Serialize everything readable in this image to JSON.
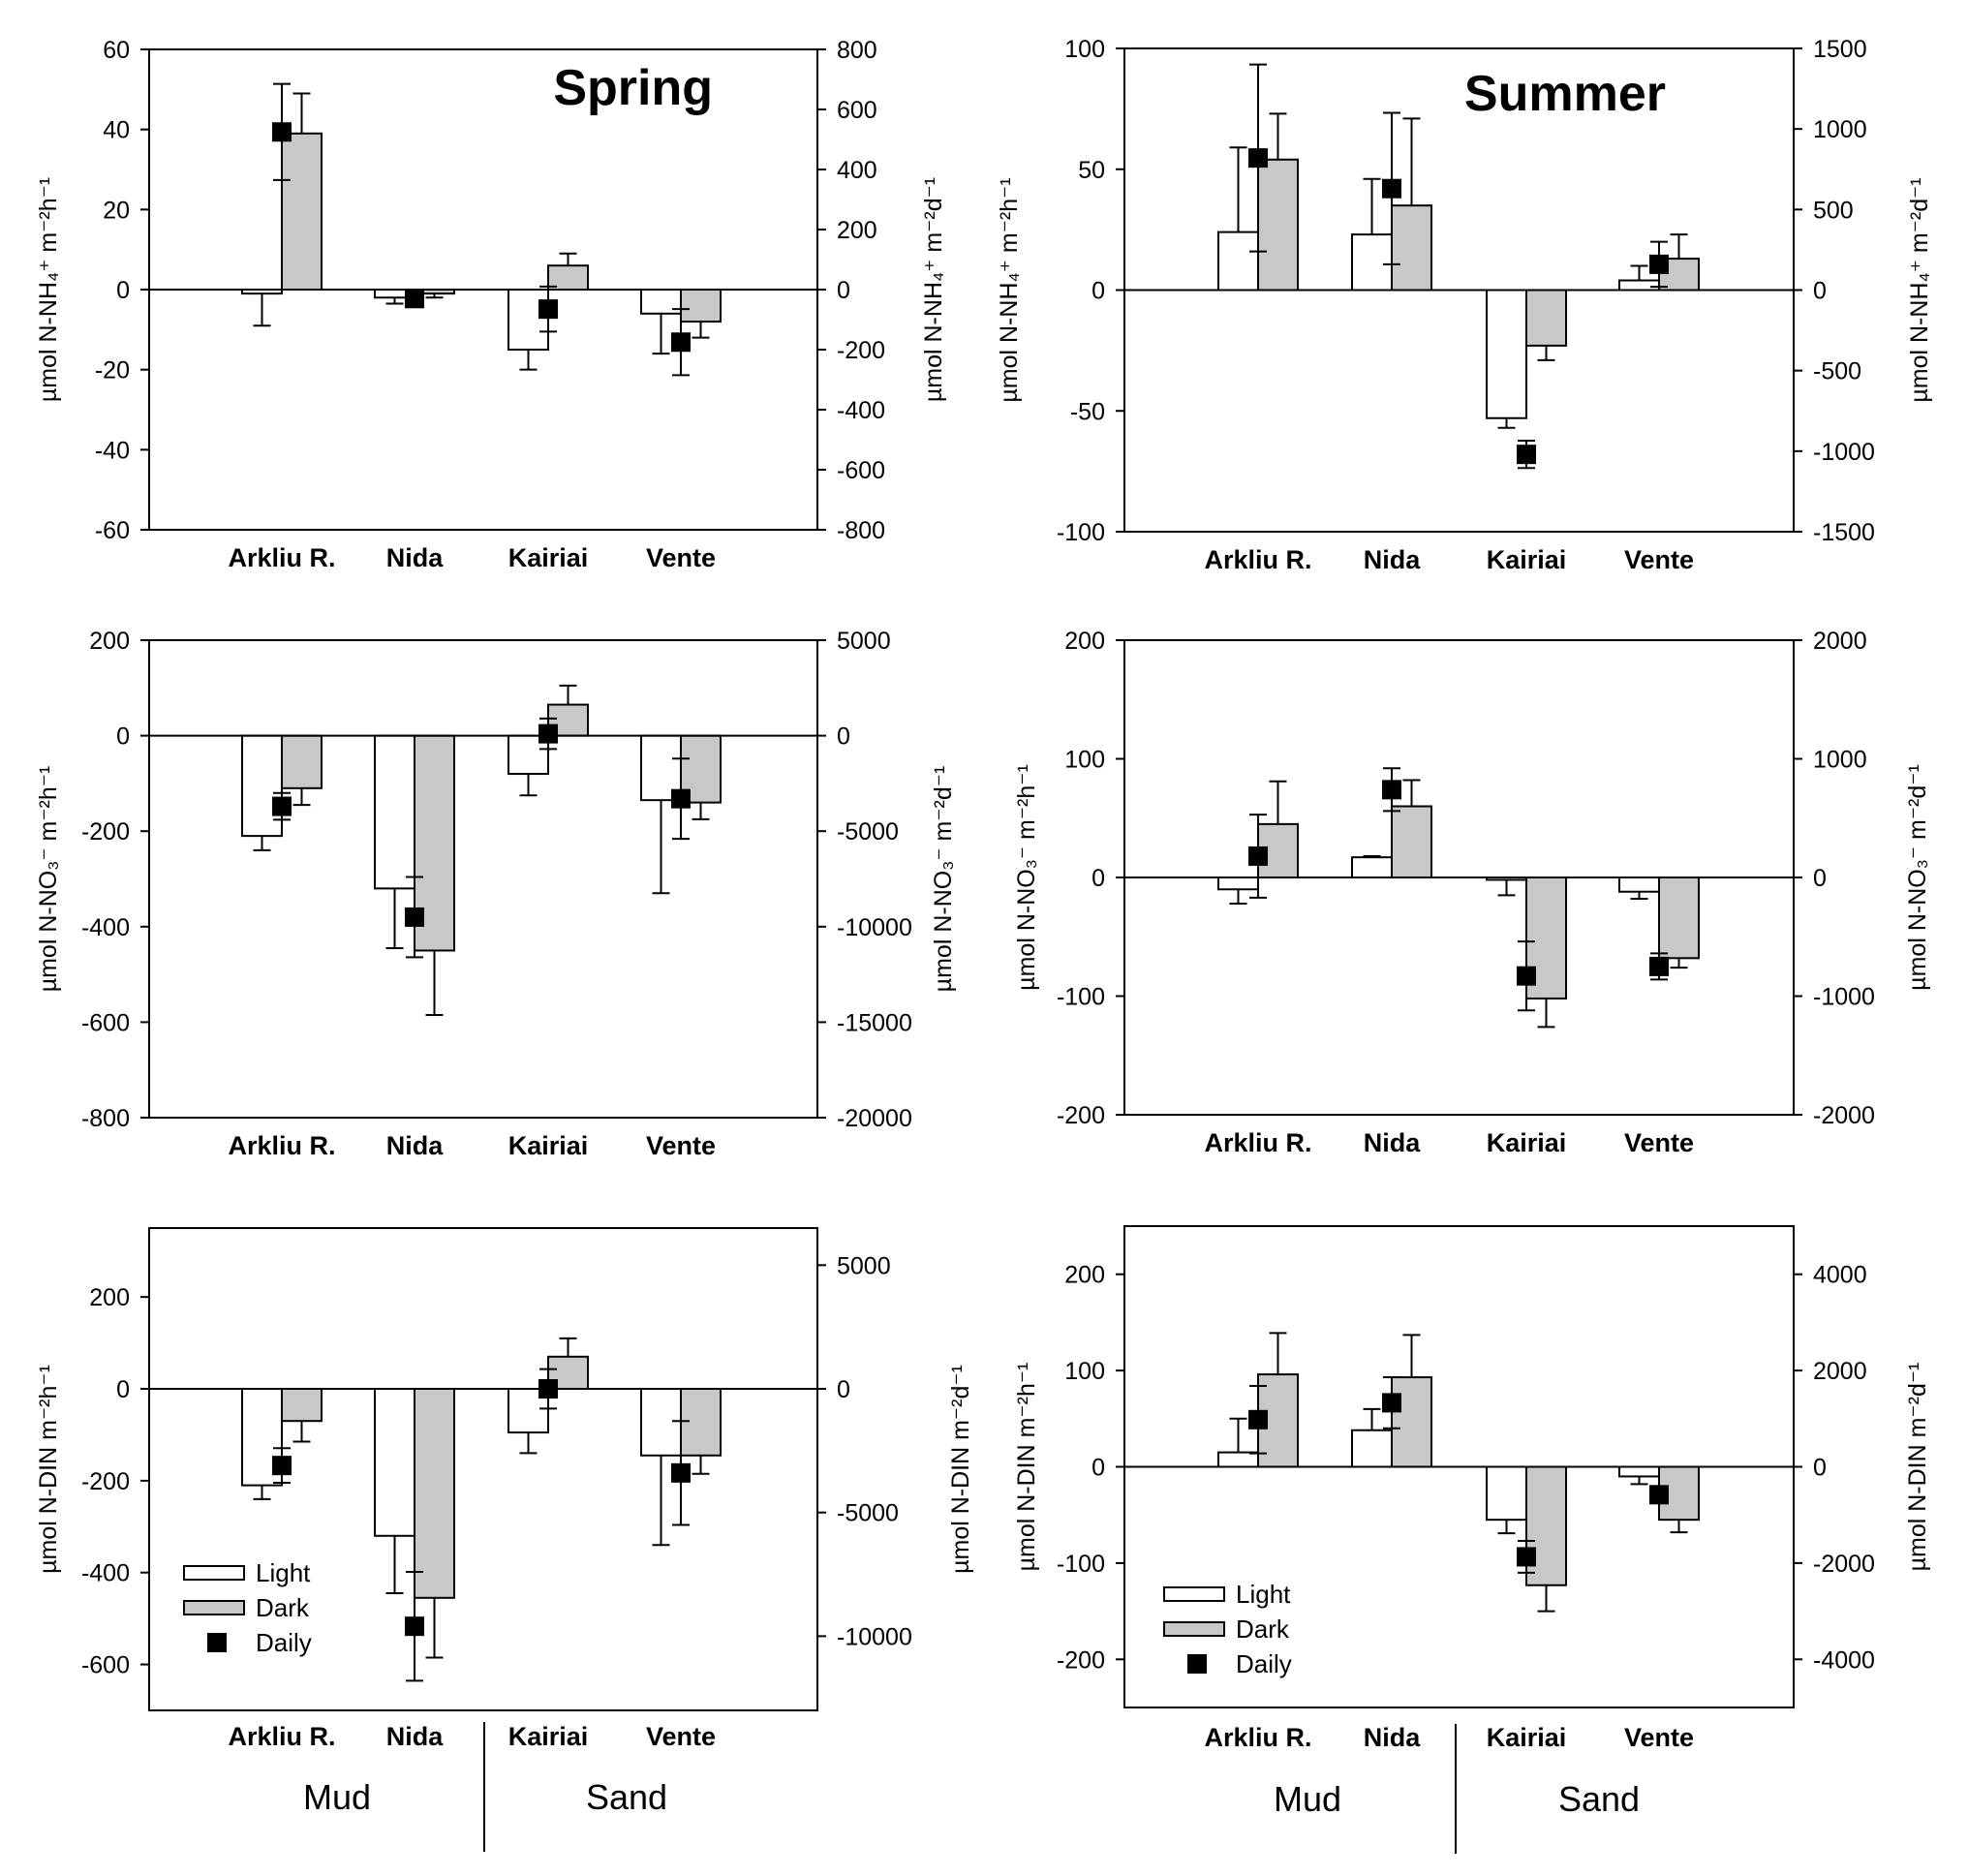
{
  "chart_data": [
    {
      "type": "bar",
      "panel": "spring-nh4",
      "title": "Spring",
      "categories": [
        "Arkliu R.",
        "Nida",
        "Kairiai",
        "Vente"
      ],
      "ylabel": "µmol N-NH₄⁺ m⁻²h⁻¹",
      "ylabel2": "µmol N-NH₄⁺ m⁻²d⁻¹",
      "ylim": [
        -60,
        60
      ],
      "yticks": [
        -60,
        -40,
        -20,
        0,
        20,
        40,
        60
      ],
      "y2lim": [
        -800,
        800
      ],
      "y2ticks": [
        -800,
        -600,
        -400,
        -200,
        0,
        200,
        400,
        600,
        800
      ],
      "series": [
        {
          "name": "Light",
          "values": [
            -1,
            -2,
            -15,
            -6
          ],
          "errors": [
            8,
            1.5,
            5,
            10
          ]
        },
        {
          "name": "Dark",
          "values": [
            39,
            -1,
            6,
            -8
          ],
          "errors": [
            10,
            1,
            3,
            4
          ]
        },
        {
          "name": "Daily",
          "axis": "right",
          "values": [
            525,
            -30,
            -65,
            -175
          ],
          "errors": [
            160,
            10,
            75,
            110
          ]
        }
      ]
    },
    {
      "type": "bar",
      "panel": "summer-nh4",
      "title": "Summer",
      "categories": [
        "Arkliu R.",
        "Nida",
        "Kairiai",
        "Vente"
      ],
      "ylabel": "µmol N-NH₄⁺ m⁻²h⁻¹",
      "ylabel2": "µmol N-NH₄⁺ m⁻²d⁻¹",
      "ylim": [
        -100,
        100
      ],
      "yticks": [
        -100,
        -50,
        0,
        50,
        100
      ],
      "y2lim": [
        -1500,
        1500
      ],
      "y2ticks": [
        -1500,
        -1000,
        -500,
        0,
        500,
        1000,
        1500
      ],
      "series": [
        {
          "name": "Light",
          "values": [
            24,
            23,
            -53,
            4
          ],
          "errors": [
            35,
            23,
            4,
            6
          ]
        },
        {
          "name": "Dark",
          "values": [
            54,
            35,
            -23,
            13
          ],
          "errors": [
            19,
            36,
            6,
            10
          ]
        },
        {
          "name": "Daily",
          "axis": "right",
          "values": [
            820,
            630,
            -1020,
            160
          ],
          "errors": [
            580,
            470,
            85,
            140
          ]
        }
      ]
    },
    {
      "type": "bar",
      "panel": "spring-no3",
      "categories": [
        "Arkliu R.",
        "Nida",
        "Kairiai",
        "Vente"
      ],
      "ylabel": "µmol N-NO₃⁻ m⁻²h⁻¹",
      "ylabel2": "µmol N-NO₃⁻ m⁻²d⁻¹",
      "ylim": [
        -800,
        200
      ],
      "yticks": [
        -800,
        -600,
        -400,
        -200,
        0,
        200
      ],
      "y2lim": [
        -20000,
        5000
      ],
      "y2ticks": [
        -20000,
        -15000,
        -10000,
        -5000,
        0,
        5000
      ],
      "series": [
        {
          "name": "Light",
          "values": [
            -210,
            -320,
            -80,
            -135
          ],
          "errors": [
            30,
            125,
            45,
            195
          ]
        },
        {
          "name": "Dark",
          "values": [
            -110,
            -450,
            65,
            -140
          ],
          "errors": [
            35,
            135,
            40,
            35
          ]
        },
        {
          "name": "Daily",
          "axis": "right",
          "values": [
            -3700,
            -9500,
            100,
            -3300
          ],
          "errors": [
            700,
            2100,
            800,
            2100
          ]
        }
      ]
    },
    {
      "type": "bar",
      "panel": "summer-no3",
      "categories": [
        "Arkliu R.",
        "Nida",
        "Kairiai",
        "Vente"
      ],
      "ylabel": "µmol N-NO₃⁻ m⁻²h⁻¹",
      "ylabel2": "µmol N-NO₃⁻ m⁻²d⁻¹",
      "ylim": [
        -200,
        200
      ],
      "yticks": [
        -200,
        -100,
        0,
        100,
        200
      ],
      "y2lim": [
        -2000,
        2000
      ],
      "y2ticks": [
        -2000,
        -1000,
        0,
        1000,
        2000
      ],
      "series": [
        {
          "name": "Light",
          "values": [
            -10,
            17,
            -2,
            -12
          ],
          "errors": [
            12,
            1,
            13,
            6
          ]
        },
        {
          "name": "Dark",
          "values": [
            45,
            60,
            -102,
            -68
          ],
          "errors": [
            36,
            22,
            24,
            8
          ]
        },
        {
          "name": "Daily",
          "axis": "right",
          "values": [
            180,
            740,
            -830,
            -750
          ],
          "errors": [
            350,
            180,
            290,
            110
          ]
        }
      ]
    },
    {
      "type": "bar",
      "panel": "spring-din",
      "categories": [
        "Arkliu R.",
        "Nida",
        "Kairiai",
        "Vente"
      ],
      "groups": [
        "Mud",
        "Sand"
      ],
      "ylabel": "µmol N-DIN m⁻²h⁻¹",
      "ylabel2": "µmol N-DIN m⁻²d⁻¹",
      "ylim": [
        -700,
        350
      ],
      "yticks": [
        -600,
        -400,
        -200,
        0,
        200
      ],
      "y2lim": [
        -13000,
        6500
      ],
      "y2ticks": [
        -10000,
        -5000,
        0,
        5000
      ],
      "series": [
        {
          "name": "Light",
          "values": [
            -210,
            -320,
            -95,
            -145
          ],
          "errors": [
            30,
            125,
            45,
            195
          ]
        },
        {
          "name": "Dark",
          "values": [
            -70,
            -455,
            70,
            -145
          ],
          "errors": [
            45,
            130,
            40,
            40
          ]
        },
        {
          "name": "Daily",
          "axis": "right",
          "values": [
            -3100,
            -9600,
            0,
            -3400
          ],
          "errors": [
            700,
            2200,
            800,
            2100
          ]
        }
      ],
      "legend": {
        "position": "lower-left",
        "entries": [
          "Light",
          "Dark",
          "Daily"
        ]
      }
    },
    {
      "type": "bar",
      "panel": "summer-din",
      "categories": [
        "Arkliu R.",
        "Nida",
        "Kairiai",
        "Vente"
      ],
      "groups": [
        "Mud",
        "Sand"
      ],
      "ylabel": "µmol N-DIN m⁻²h⁻¹",
      "ylabel2": "µmol N-DIN m⁻²d⁻¹",
      "ylim": [
        -250,
        250
      ],
      "yticks": [
        -200,
        -100,
        0,
        100,
        200
      ],
      "y2lim": [
        -5000,
        5000
      ],
      "y2ticks": [
        -4000,
        -2000,
        0,
        2000,
        4000
      ],
      "series": [
        {
          "name": "Light",
          "values": [
            15,
            38,
            -55,
            -10
          ],
          "errors": [
            35,
            22,
            14,
            8
          ]
        },
        {
          "name": "Dark",
          "values": [
            96,
            93,
            -123,
            -55
          ],
          "errors": [
            43,
            44,
            27,
            13
          ]
        },
        {
          "name": "Daily",
          "axis": "right",
          "values": [
            980,
            1330,
            -1870,
            -580
          ],
          "errors": [
            700,
            530,
            330,
            170
          ]
        }
      ],
      "legend": {
        "position": "lower-left",
        "entries": [
          "Light",
          "Dark",
          "Daily"
        ]
      }
    }
  ]
}
